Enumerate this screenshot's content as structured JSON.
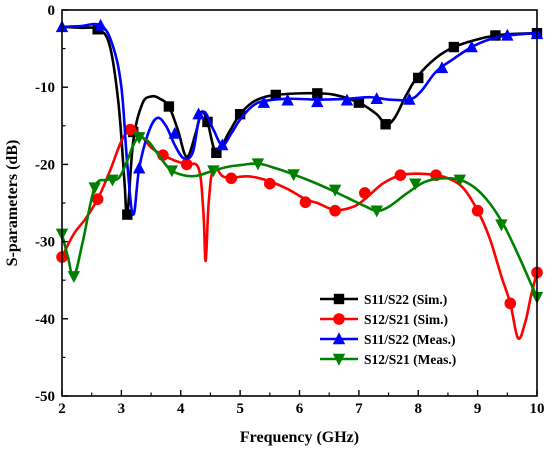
{
  "chart_data": {
    "type": "line",
    "xlabel": "Frequency (GHz)",
    "ylabel": "S-parameters (dB)",
    "xlim": [
      2,
      10
    ],
    "ylim": [
      -50,
      0
    ],
    "xticks": [
      "2",
      "3",
      "4",
      "5",
      "6",
      "7",
      "8",
      "9",
      "10"
    ],
    "yticks": [
      "0",
      "-10",
      "-20",
      "-30",
      "-40",
      "-50"
    ],
    "grid": false,
    "legend_position": "bottom-right",
    "series": [
      {
        "name": "S11/S22 (Sim.)",
        "color": "#000000",
        "marker": "square",
        "x": [
          2.0,
          2.3,
          2.6,
          2.8,
          2.95,
          3.05,
          3.1,
          3.2,
          3.35,
          3.5,
          3.65,
          3.8,
          3.95,
          4.1,
          4.25,
          4.35,
          4.45,
          4.6,
          4.8,
          5.0,
          5.2,
          5.4,
          5.6,
          6.0,
          6.3,
          6.6,
          7.0,
          7.3,
          7.45,
          7.6,
          7.8,
          8.0,
          8.3,
          8.6,
          9.0,
          9.3,
          9.6,
          10.0
        ],
        "y": [
          -2.2,
          -2.3,
          -2.5,
          -4.5,
          -12.0,
          -22.0,
          -26.5,
          -17.0,
          -12.2,
          -11.2,
          -11.5,
          -12.5,
          -15.5,
          -19.0,
          -16.0,
          -13.2,
          -14.5,
          -18.5,
          -16.0,
          -13.5,
          -12.0,
          -11.3,
          -11.0,
          -10.8,
          -10.8,
          -11.0,
          -12.0,
          -13.5,
          -14.8,
          -14.0,
          -11.0,
          -8.5,
          -6.2,
          -4.8,
          -3.8,
          -3.3,
          -3.1,
          -3.0
        ],
        "markers_x": [
          2.6,
          3.1,
          3.2,
          3.8,
          4.45,
          4.6,
          5.0,
          5.6,
          6.3,
          7.0,
          7.45,
          8.0,
          8.6,
          9.3,
          10.0
        ],
        "markers_y": [
          -2.5,
          -26.5,
          -15.8,
          -12.5,
          -14.5,
          -18.5,
          -13.5,
          -11.0,
          -10.8,
          -12.0,
          -14.8,
          -8.8,
          -4.8,
          -3.3,
          -3.0
        ]
      },
      {
        "name": "S12/S21 (Sim.)",
        "color": "#ff0000",
        "marker": "circle",
        "x": [
          2.0,
          2.2,
          2.4,
          2.6,
          2.8,
          3.0,
          3.15,
          3.3,
          3.5,
          3.7,
          3.9,
          4.1,
          4.3,
          4.38,
          4.42,
          4.47,
          4.55,
          4.7,
          4.85,
          5.0,
          5.2,
          5.5,
          5.8,
          6.1,
          6.3,
          6.6,
          6.9,
          7.1,
          7.4,
          7.7,
          8.0,
          8.3,
          8.5,
          8.75,
          9.0,
          9.2,
          9.4,
          9.55,
          9.68,
          9.8,
          9.9,
          10.0
        ],
        "y": [
          -32.0,
          -29.0,
          -27.0,
          -24.5,
          -21.0,
          -17.0,
          -15.5,
          -16.0,
          -17.8,
          -18.8,
          -19.5,
          -20.0,
          -20.5,
          -26.0,
          -32.5,
          -25.0,
          -20.5,
          -21.5,
          -21.8,
          -21.6,
          -21.6,
          -22.2,
          -23.2,
          -24.5,
          -25.0,
          -25.9,
          -25.5,
          -24.5,
          -22.5,
          -21.4,
          -21.2,
          -21.4,
          -21.8,
          -23.0,
          -26.0,
          -29.5,
          -34.5,
          -38.0,
          -42.5,
          -40.5,
          -37.0,
          -34.0
        ],
        "markers_x": [
          2.0,
          2.6,
          3.15,
          3.7,
          4.1,
          4.85,
          5.5,
          6.1,
          6.6,
          7.1,
          7.7,
          8.3,
          9.0,
          9.55,
          10.0
        ],
        "markers_y": [
          -32.0,
          -24.5,
          -15.5,
          -18.8,
          -20.0,
          -21.8,
          -22.5,
          -24.9,
          -26.0,
          -23.7,
          -21.4,
          -21.4,
          -26.0,
          -38.0,
          -34.0
        ]
      },
      {
        "name": "S11/S22 (Meas.)",
        "color": "#0000ff",
        "marker": "triangle-up",
        "x": [
          2.0,
          2.3,
          2.65,
          2.85,
          3.0,
          3.1,
          3.2,
          3.3,
          3.45,
          3.6,
          3.75,
          3.9,
          4.05,
          4.2,
          4.3,
          4.4,
          4.55,
          4.7,
          4.85,
          5.0,
          5.2,
          5.4,
          5.8,
          6.3,
          6.8,
          7.2,
          7.5,
          7.85,
          8.05,
          8.3,
          8.6,
          8.9,
          9.2,
          9.5,
          10.0
        ],
        "y": [
          -2.2,
          -2.1,
          -2.0,
          -4.5,
          -10.0,
          -20.0,
          -26.5,
          -20.5,
          -16.0,
          -14.0,
          -15.0,
          -17.5,
          -19.2,
          -18.5,
          -14.5,
          -13.2,
          -15.5,
          -17.5,
          -16.0,
          -14.2,
          -12.5,
          -11.8,
          -11.5,
          -11.6,
          -11.5,
          -11.3,
          -11.6,
          -11.6,
          -10.5,
          -8.0,
          -6.3,
          -4.8,
          -3.8,
          -3.3,
          -3.0
        ],
        "markers_x": [
          2.0,
          2.65,
          3.3,
          3.9,
          4.3,
          4.7,
          5.4,
          5.8,
          6.3,
          6.8,
          7.3,
          7.85,
          8.4,
          8.9,
          9.5,
          10.0
        ],
        "markers_y": [
          -2.2,
          -2.0,
          -20.5,
          -16.0,
          -13.5,
          -17.5,
          -12.0,
          -11.7,
          -11.9,
          -11.7,
          -11.5,
          -11.6,
          -7.5,
          -4.8,
          -3.3,
          -3.1
        ]
      },
      {
        "name": "S12/S21 (Meas.)",
        "color": "#008000",
        "marker": "triangle-down",
        "x": [
          2.0,
          2.1,
          2.2,
          2.35,
          2.55,
          2.75,
          2.95,
          3.1,
          3.2,
          3.3,
          3.45,
          3.6,
          3.8,
          4.0,
          4.25,
          4.55,
          4.8,
          5.0,
          5.3,
          5.6,
          5.9,
          6.2,
          6.5,
          6.8,
          7.1,
          7.3,
          7.5,
          7.8,
          8.1,
          8.4,
          8.7,
          8.95,
          9.2,
          9.45,
          9.7,
          9.9,
          10.0
        ],
        "y": [
          -29.0,
          -32.0,
          -34.5,
          -30.0,
          -23.0,
          -22.0,
          -21.8,
          -19.5,
          -17.5,
          -16.5,
          -17.0,
          -18.5,
          -20.5,
          -21.3,
          -21.5,
          -20.8,
          -20.3,
          -20.1,
          -19.9,
          -20.5,
          -21.3,
          -22.2,
          -23.2,
          -24.3,
          -25.4,
          -26.0,
          -25.5,
          -23.8,
          -22.3,
          -21.8,
          -22.0,
          -23.0,
          -25.0,
          -28.0,
          -32.0,
          -35.5,
          -37.2
        ],
        "markers_x": [
          2.0,
          2.2,
          2.55,
          2.85,
          3.3,
          3.85,
          4.55,
          5.3,
          5.9,
          6.6,
          7.3,
          7.95,
          8.7,
          9.4,
          10.0
        ],
        "markers_y": [
          -29.0,
          -34.5,
          -23.0,
          -22.0,
          -16.5,
          -20.8,
          -20.8,
          -19.9,
          -21.3,
          -23.3,
          -26.0,
          -22.5,
          -22.0,
          -27.8,
          -37.2
        ]
      }
    ]
  }
}
